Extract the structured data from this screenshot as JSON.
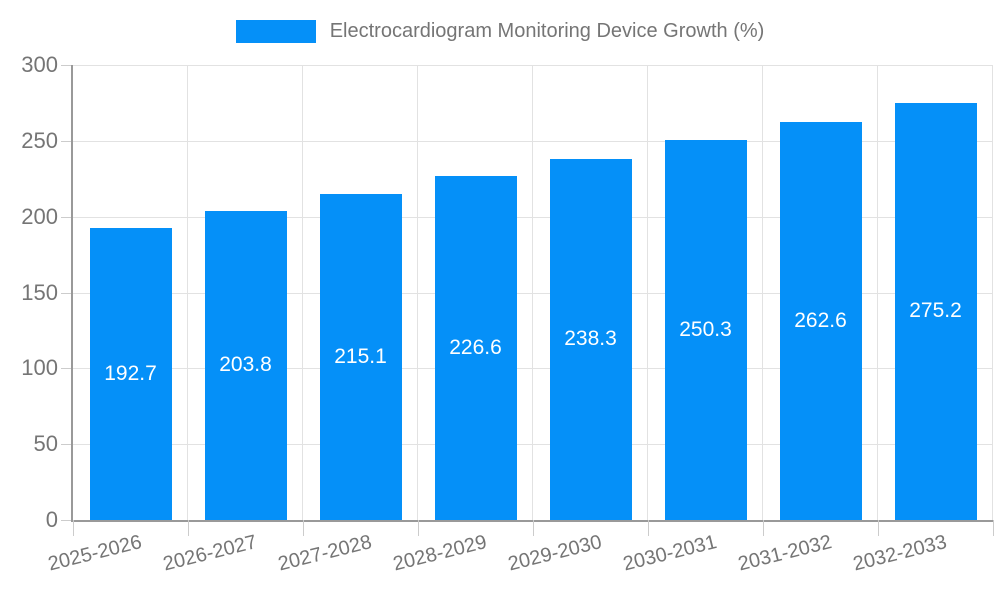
{
  "legend": {
    "label": "Electrocardiogram Monitoring Device Growth (%)"
  },
  "colors": {
    "bar": "#0590f8",
    "axis": "#999999",
    "grid": "#e2e2e2",
    "tick": "#cccccc",
    "text": "#757575",
    "value_label": "#ffffff",
    "background": "#ffffff"
  },
  "chart_data": {
    "type": "bar",
    "title": "Electrocardiogram Monitoring Device Growth (%)",
    "categories": [
      "2025-2026",
      "2026-2027",
      "2027-2028",
      "2028-2029",
      "2029-2030",
      "2030-2031",
      "2031-2032",
      "2032-2033"
    ],
    "values": [
      192.7,
      203.8,
      215.1,
      226.6,
      238.3,
      250.3,
      262.6,
      275.2
    ],
    "value_labels": [
      "192.7",
      "203.8",
      "215.1",
      "226.6",
      "238.3",
      "250.3",
      "262.6",
      "275.2"
    ],
    "xlabel": "",
    "ylabel": "",
    "ylim": [
      0,
      300
    ],
    "yticks": [
      0,
      50,
      100,
      150,
      200,
      250,
      300
    ],
    "grid": true,
    "legend_position": "top-center"
  }
}
